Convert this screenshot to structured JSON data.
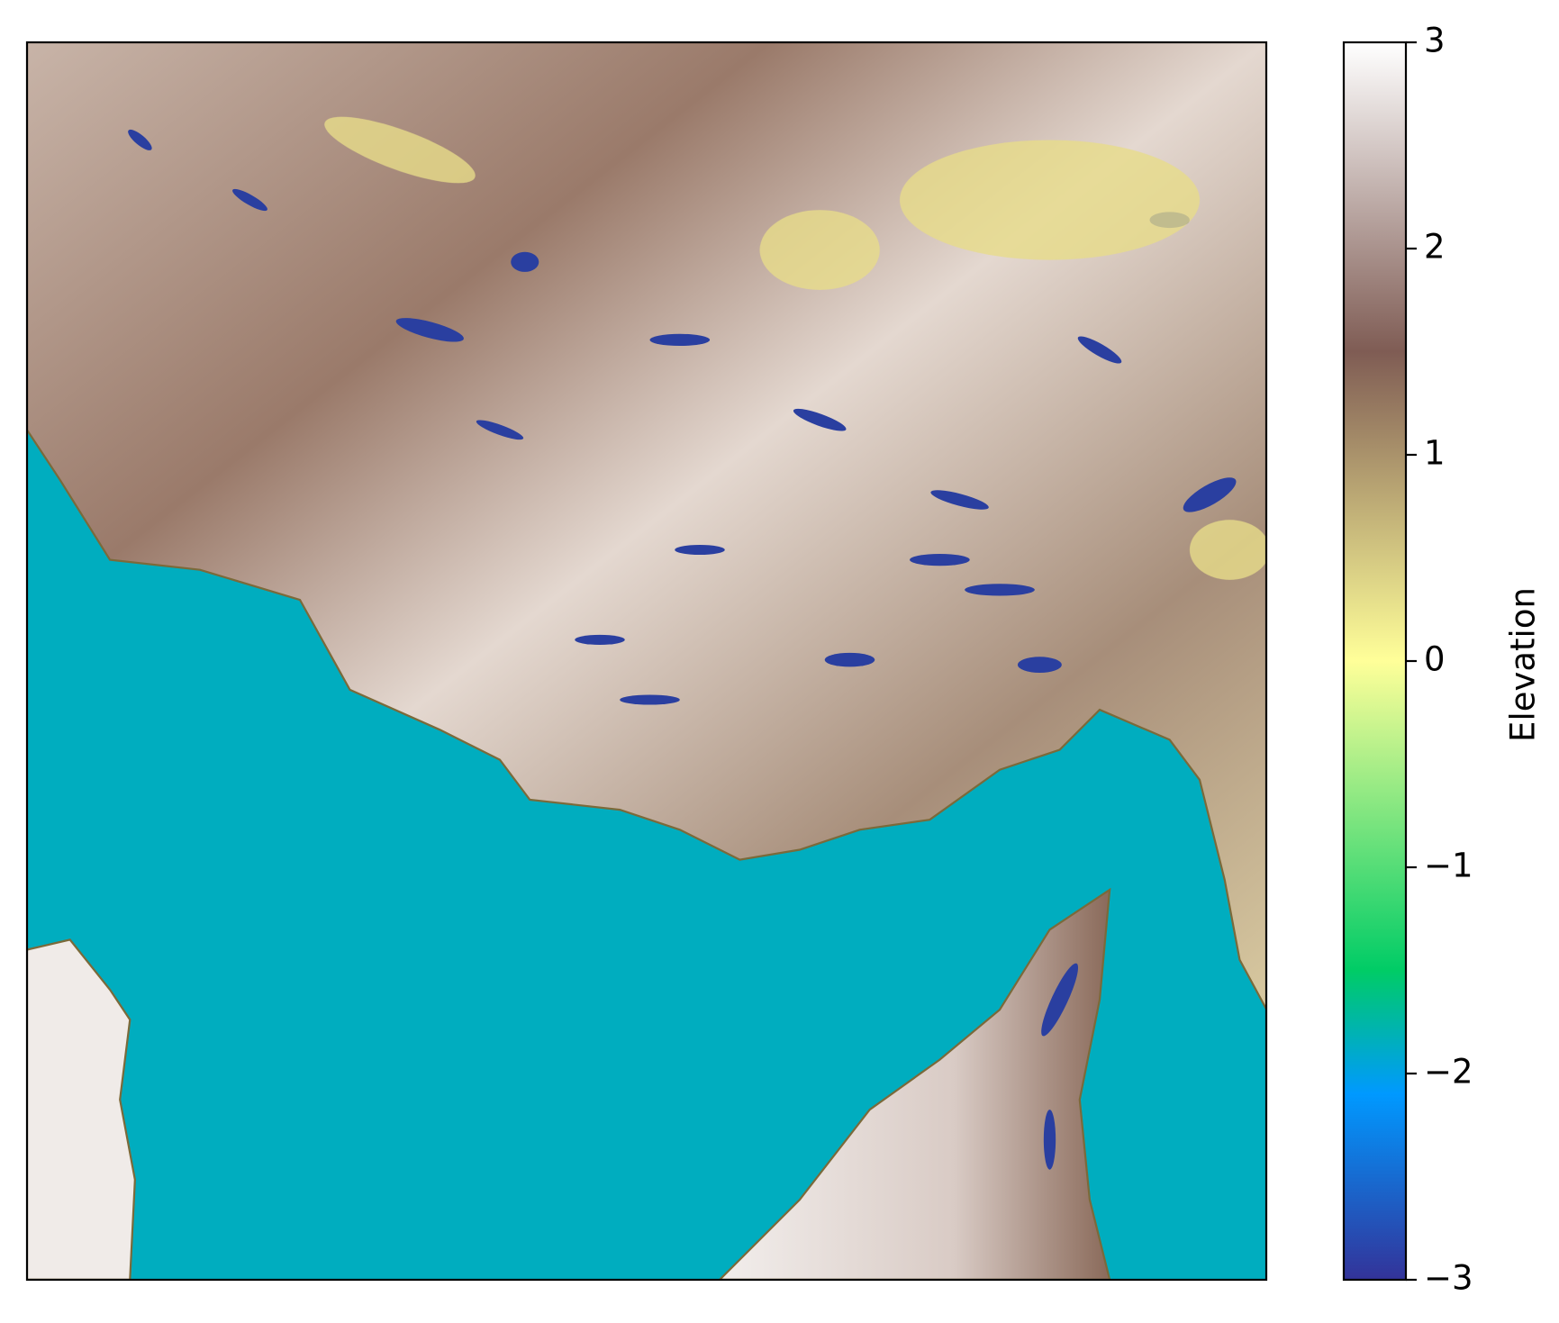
{
  "chart_data": {
    "type": "raster-map",
    "colormap": "terrain",
    "colorbar": {
      "label": "Elevation",
      "clim": [
        -3,
        3
      ],
      "ticks": [
        {
          "value": -3,
          "label": "−3"
        },
        {
          "value": -2,
          "label": "−2"
        },
        {
          "value": -1,
          "label": "−1"
        },
        0,
        1,
        2,
        3
      ]
    }
  }
}
